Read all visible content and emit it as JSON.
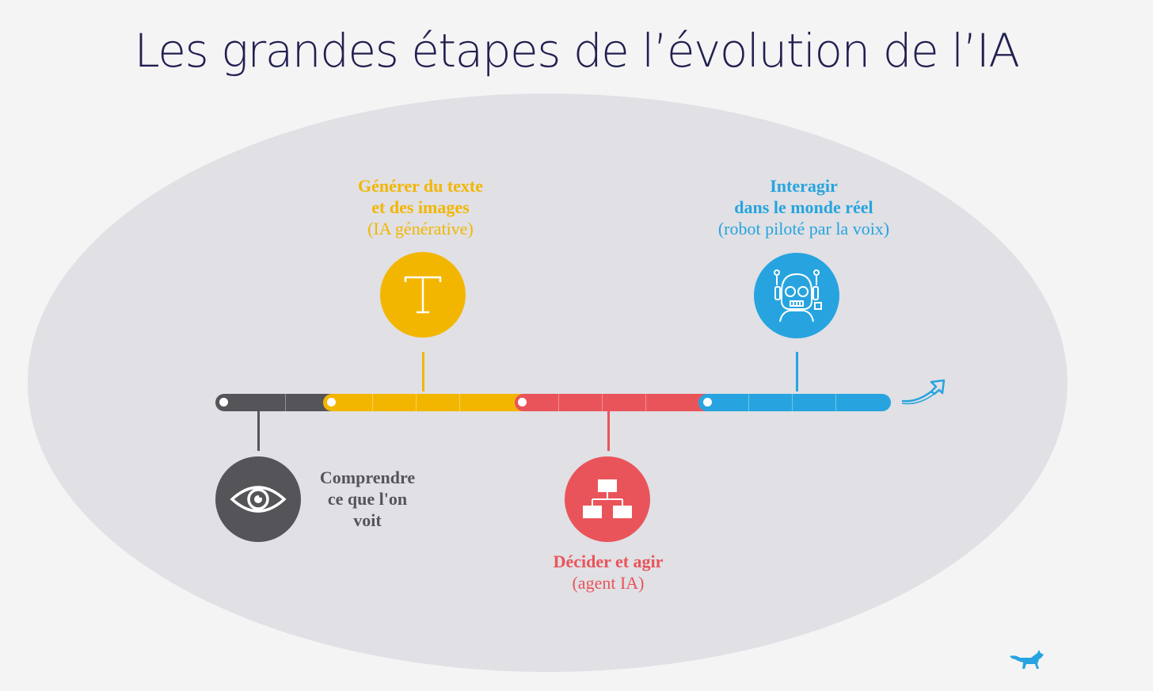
{
  "title": "Les grandes étapes de l’évolution de l’IA",
  "colors": {
    "title": "#222050",
    "gray": "#555559",
    "yellow": "#f3b600",
    "red": "#e9545a",
    "blue": "#27a4df",
    "ellipse": "#e0e0e5",
    "background": "#f4f4f5"
  },
  "stages": [
    {
      "id": "comprendre",
      "color": "gray",
      "icon": "eye-icon",
      "lines": [
        "Comprendre",
        "ce que l'on",
        "voit"
      ],
      "sub": ""
    },
    {
      "id": "generer",
      "color": "yellow",
      "icon": "text-cursor-icon",
      "lines": [
        "Générer du texte",
        "et des images"
      ],
      "sub": "(IA générative)"
    },
    {
      "id": "decider",
      "color": "red",
      "icon": "flowchart-icon",
      "lines": [
        "Décider et agir"
      ],
      "sub": "(agent IA)"
    },
    {
      "id": "interagir",
      "color": "blue",
      "icon": "robot-icon",
      "lines": [
        "Interagir",
        "dans le monde réel"
      ],
      "sub": "(robot piloté par la voix)"
    }
  ],
  "decorations": {
    "arrow_icon": "trend-arrow-icon",
    "logo": "fox-logo"
  }
}
